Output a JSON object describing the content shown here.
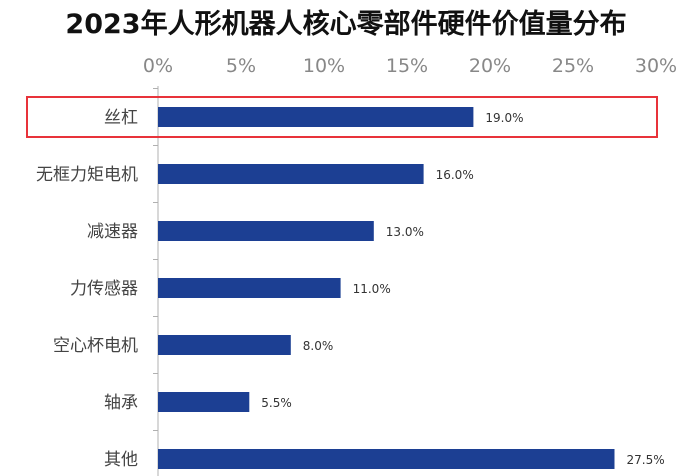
{
  "chart_data": {
    "type": "bar",
    "orientation": "horizontal",
    "title": "2023年人形机器人核心零部件硬件价值量分布",
    "categories": [
      "丝杠",
      "无框力矩电机",
      "减速器",
      "力传感器",
      "空心杯电机",
      "轴承",
      "其他"
    ],
    "values": [
      19.0,
      16.0,
      13.0,
      11.0,
      8.0,
      5.5,
      27.5
    ],
    "value_labels": [
      "19.0%",
      "16.0%",
      "13.0%",
      "11.0%",
      "8.0%",
      "5.5%",
      "27.5%"
    ],
    "xticks": [
      "0%",
      "5%",
      "10%",
      "15%",
      "20%",
      "25%",
      "30%"
    ],
    "xlim": [
      0,
      30
    ],
    "axis_position": "top",
    "grid": false,
    "bar_color": "#1c3f93",
    "highlight": {
      "category": "丝杠",
      "color": "#e8333a"
    }
  }
}
